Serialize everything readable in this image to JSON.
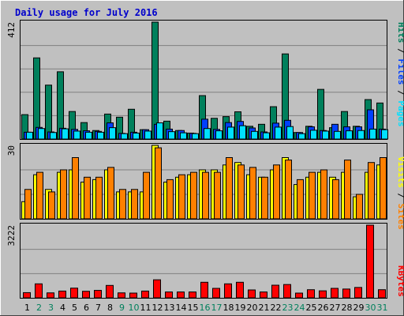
{
  "title": "Daily usage for July 2016",
  "colors": {
    "background": "#c0c0c0",
    "title": "#0000cc",
    "hits": "#00805c",
    "files": "#0040ff",
    "pages": "#00e0ff",
    "visits": "#ffff00",
    "sites": "#ff8000",
    "kbytes": "#ff0000",
    "weekend_label": "#00805c",
    "weekday_label": "#000000"
  },
  "axis_labels": {
    "top_max": "412",
    "middle_max": "30",
    "bottom_max": "3222"
  },
  "legends": {
    "top": {
      "pages": "Pages",
      "files": "Files",
      "hits": "Hits",
      "sep": " / "
    },
    "middle": {
      "sites": "Sites",
      "visits": "Visits",
      "sep": " / "
    },
    "bottom": {
      "kbytes": "KBytes"
    }
  },
  "chart_data": [
    {
      "type": "bar",
      "title": "Daily usage for July 2016",
      "ylim": [
        0,
        412
      ],
      "categories": [
        "1",
        "2",
        "3",
        "4",
        "5",
        "6",
        "7",
        "8",
        "9",
        "10",
        "11",
        "12",
        "13",
        "14",
        "15",
        "16",
        "17",
        "18",
        "19",
        "20",
        "21",
        "22",
        "23",
        "24",
        "25",
        "26",
        "27",
        "28",
        "29",
        "30",
        "31"
      ],
      "weekend_days": [
        "2",
        "3",
        "9",
        "10",
        "16",
        "17",
        "23",
        "24",
        "30",
        "31"
      ],
      "series": [
        {
          "name": "Hits",
          "values": [
            86,
            286,
            190,
            237,
            97,
            58,
            30,
            88,
            77,
            105,
            33,
            412,
            63,
            30,
            21,
            153,
            73,
            79,
            96,
            45,
            52,
            114,
            300,
            23,
            45,
            175,
            40,
            97,
            45,
            139,
            127
          ]
        },
        {
          "name": "Files",
          "values": [
            24,
            41,
            25,
            38,
            34,
            29,
            27,
            57,
            20,
            24,
            33,
            52,
            35,
            30,
            20,
            70,
            34,
            58,
            62,
            39,
            25,
            56,
            66,
            23,
            43,
            30,
            52,
            43,
            43,
            103,
            35
          ]
        },
        {
          "name": "Pages",
          "values": [
            24,
            37,
            23,
            36,
            28,
            24,
            24,
            40,
            19,
            21,
            28,
            57,
            26,
            22,
            19,
            37,
            29,
            42,
            47,
            27,
            22,
            42,
            44,
            19,
            31,
            28,
            27,
            29,
            30,
            35,
            33
          ]
        }
      ]
    },
    {
      "type": "bar",
      "ylim": [
        0,
        30
      ],
      "categories": [
        "1",
        "2",
        "3",
        "4",
        "5",
        "6",
        "7",
        "8",
        "9",
        "10",
        "11",
        "12",
        "13",
        "14",
        "15",
        "16",
        "17",
        "18",
        "19",
        "20",
        "21",
        "22",
        "23",
        "24",
        "25",
        "26",
        "27",
        "28",
        "29",
        "30",
        "31"
      ],
      "series": [
        {
          "name": "Visits",
          "values": [
            7,
            18,
            12,
            19,
            20,
            15,
            16,
            20,
            11,
            11,
            11,
            30,
            15,
            17,
            18,
            20,
            20,
            22,
            23,
            18,
            17,
            20,
            25,
            14,
            17,
            19,
            17,
            19,
            9,
            19,
            22
          ]
        },
        {
          "name": "Sites",
          "values": [
            12,
            19,
            11,
            20,
            25,
            17,
            17,
            21,
            12,
            12,
            19,
            29,
            16,
            18,
            19,
            19,
            19,
            25,
            22,
            21,
            17,
            22,
            24,
            16,
            19,
            20,
            16,
            24,
            10,
            23,
            25
          ]
        }
      ]
    },
    {
      "type": "bar",
      "ylim": [
        0,
        3222
      ],
      "categories": [
        "1",
        "2",
        "3",
        "4",
        "5",
        "6",
        "7",
        "8",
        "9",
        "10",
        "11",
        "12",
        "13",
        "14",
        "15",
        "16",
        "17",
        "18",
        "19",
        "20",
        "21",
        "22",
        "23",
        "24",
        "25",
        "26",
        "27",
        "28",
        "29",
        "30",
        "31"
      ],
      "series": [
        {
          "name": "KBytes",
          "values": [
            230,
            620,
            220,
            300,
            430,
            290,
            330,
            550,
            220,
            210,
            300,
            800,
            260,
            260,
            260,
            690,
            420,
            620,
            690,
            350,
            260,
            560,
            590,
            210,
            360,
            310,
            420,
            390,
            460,
            3222,
            360
          ]
        }
      ]
    }
  ]
}
